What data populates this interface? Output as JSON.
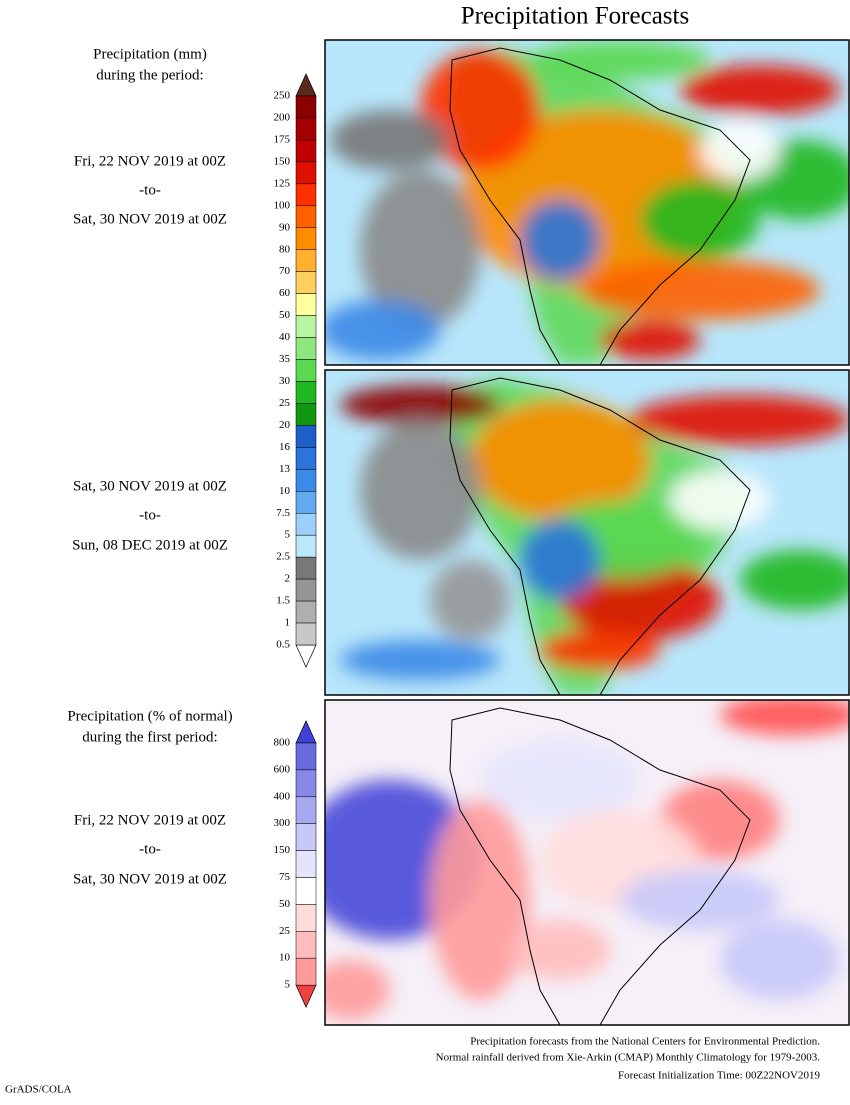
{
  "title": "Precipitation Forecasts",
  "sections": [
    {
      "heading": [
        "Precipitation (mm)",
        "during the period:"
      ],
      "periods": [
        {
          "start": "Fri, 22 NOV 2019 at 00Z",
          "separator": "-to-",
          "end": "Sat, 30 NOV 2019 at 00Z"
        },
        {
          "start": "Sat, 30 NOV 2019 at 00Z",
          "separator": "-to-",
          "end": "Sun, 08 DEC 2019 at 00Z"
        }
      ]
    },
    {
      "heading": [
        "Precipitation (% of normal)",
        "during the first period:"
      ],
      "periods": [
        {
          "start": "Fri, 22 NOV 2019 at 00Z",
          "separator": "-to-",
          "end": "Sat, 30 NOV 2019 at 00Z"
        }
      ]
    }
  ],
  "colorbars": [
    {
      "labels": [
        "250",
        "200",
        "175",
        "150",
        "125",
        "100",
        "90",
        "80",
        "70",
        "60",
        "50",
        "40",
        "35",
        "30",
        "25",
        "20",
        "16",
        "13",
        "10",
        "7.5",
        "5",
        "2.5",
        "2",
        "1.5",
        "1",
        "0.5"
      ]
    },
    {
      "labels": [
        "800",
        "600",
        "400",
        "300",
        "150",
        "75",
        "50",
        "25",
        "10",
        "5"
      ]
    }
  ],
  "footer": {
    "notes": [
      "Precipitation forecasts from the National Centers for Environmental Prediction.",
      "Normal rainfall derived from Xie-Arkin (CMAP) Monthly Climatology for 1979-2003.",
      "Forecast Initialization Time: 00Z22NOV2019"
    ],
    "credit": "GrADS/COLA"
  }
}
